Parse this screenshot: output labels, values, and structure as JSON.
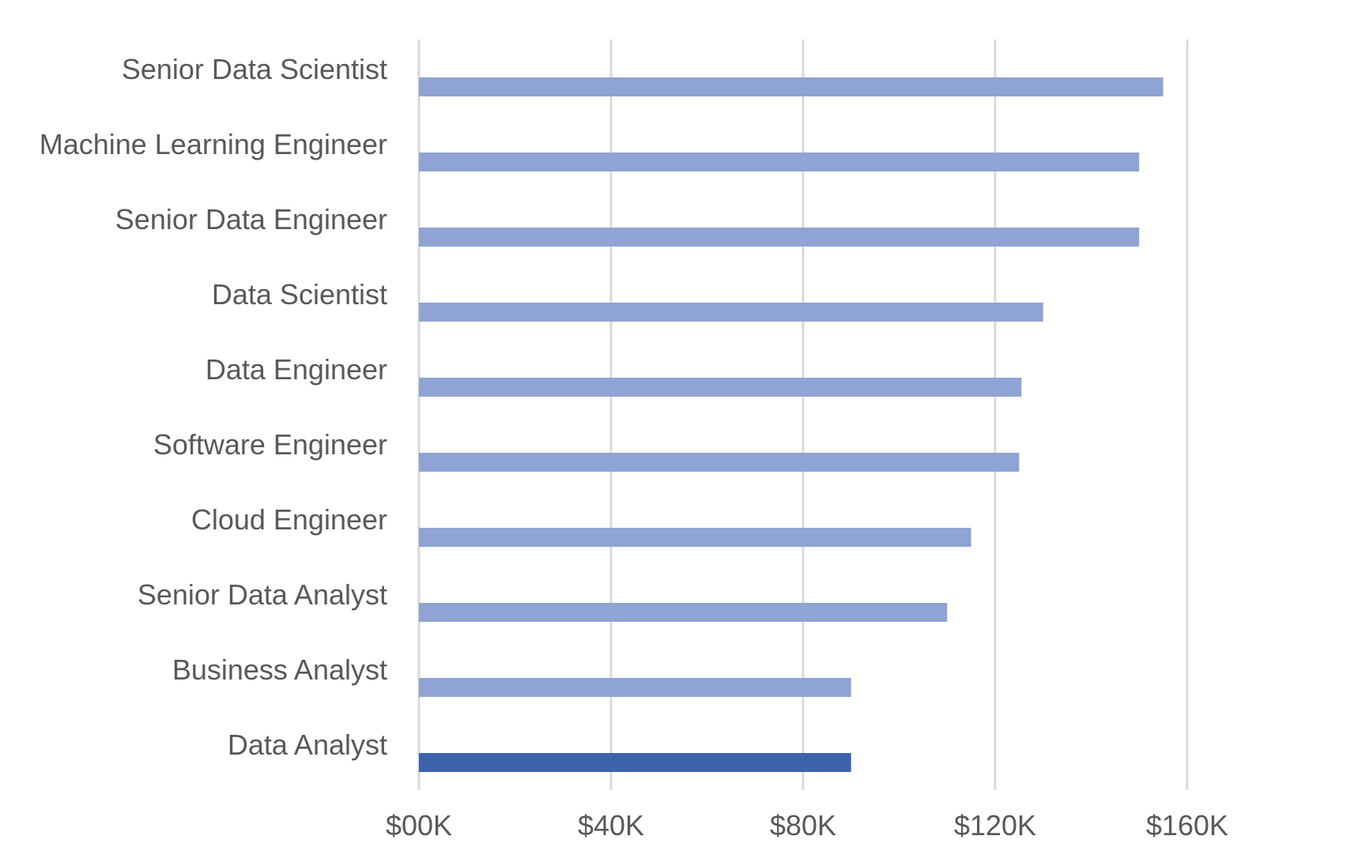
{
  "chart_data": {
    "type": "bar",
    "orientation": "horizontal",
    "title": "",
    "xlabel": "",
    "ylabel": "",
    "categories": [
      "Senior Data Scientist",
      "Machine Learning Engineer",
      "Senior Data Engineer",
      "Data Scientist",
      "Data Engineer",
      "Software Engineer",
      "Cloud Engineer",
      "Senior Data Analyst",
      "Business Analyst",
      "Data Analyst"
    ],
    "values": [
      155000,
      150000,
      150000,
      130000,
      125500,
      125000,
      115000,
      110000,
      90000,
      90000
    ],
    "highlight_index": 9,
    "xlim": [
      0,
      160000
    ],
    "x_ticks": [
      0,
      40000,
      80000,
      120000,
      160000
    ],
    "x_tick_labels": [
      "$00K",
      "$40K",
      "$80K",
      "$120K",
      "$160K"
    ],
    "grid": "vertical",
    "legend": "none",
    "colors": {
      "bar": "#8fa3d4",
      "highlight": "#3d63ad",
      "grid": "#d9d9d9",
      "text": "#595959"
    }
  }
}
